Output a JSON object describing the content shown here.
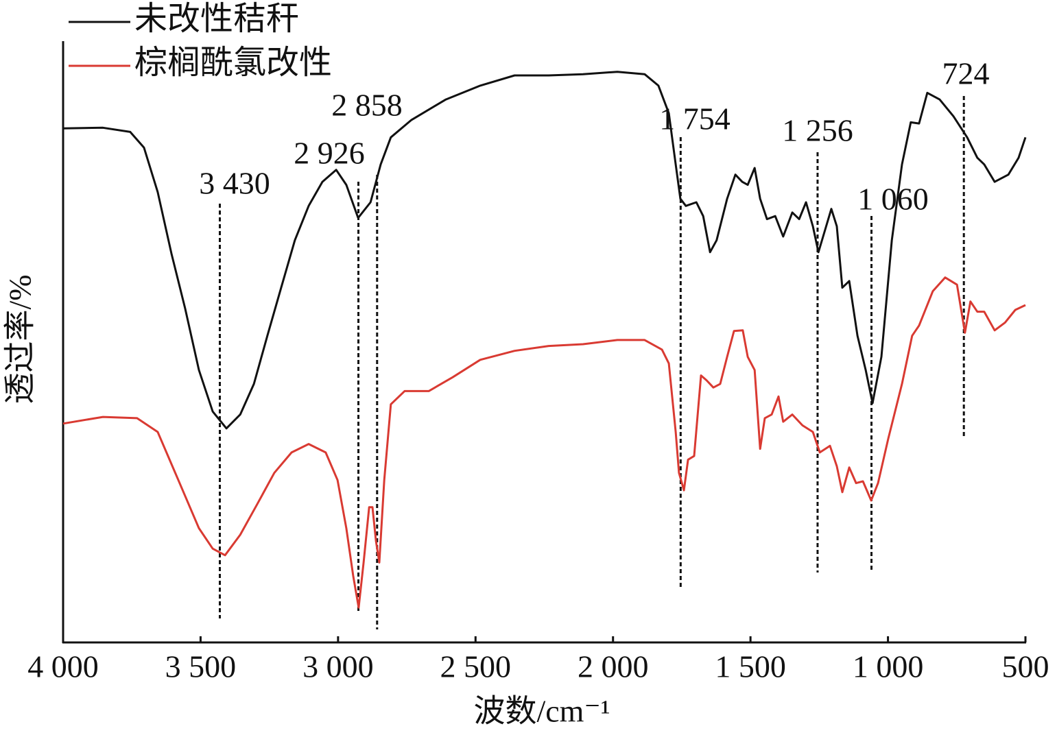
{
  "chart_data": {
    "type": "line",
    "xlabel": "波数/cm⁻¹",
    "ylabel": "透过率/%",
    "xlim": [
      4000,
      500
    ],
    "ylim": [
      0,
      100
    ],
    "xticks": [
      {
        "value": 4000,
        "label": "4 000"
      },
      {
        "value": 3500,
        "label": "3 500"
      },
      {
        "value": 3000,
        "label": "3 000"
      },
      {
        "value": 2500,
        "label": "2 500"
      },
      {
        "value": 2000,
        "label": "2 000"
      },
      {
        "value": 1500,
        "label": "1 500"
      },
      {
        "value": 1000,
        "label": "1 000"
      },
      500
    ],
    "legend": "upper left",
    "series": [
      {
        "name": "未改性秸秆",
        "color": "#111111",
        "x": [
          4000,
          3855,
          3756,
          3706,
          3656,
          3606,
          3556,
          3506,
          3456,
          3406,
          3356,
          3306,
          3257,
          3207,
          3157,
          3107,
          3057,
          3007,
          2970,
          2927,
          2882,
          2845,
          2808,
          2733,
          2608,
          2483,
          2358,
          2234,
          2109,
          1984,
          1885,
          1835,
          1797,
          1772,
          1755,
          1735,
          1697,
          1672,
          1647,
          1623,
          1585,
          1555,
          1530,
          1510,
          1485,
          1465,
          1440,
          1410,
          1381,
          1348,
          1323,
          1298,
          1273,
          1253,
          1236,
          1206,
          1186,
          1166,
          1141,
          1111,
          1081,
          1056,
          1024,
          986,
          949,
          917,
          887,
          857,
          812,
          762,
          712,
          675,
          650,
          612,
          562,
          525,
          500
        ],
        "values": [
          85.5,
          85.6,
          84.9,
          82.3,
          74.9,
          64.7,
          55.5,
          45.3,
          38.4,
          35.6,
          37.9,
          43.0,
          51.0,
          59.0,
          66.9,
          72.6,
          76.6,
          78.6,
          76.1,
          70.6,
          73.2,
          79.5,
          84.0,
          86.9,
          90.3,
          92.6,
          94.3,
          94.3,
          94.5,
          94.9,
          94.5,
          92.6,
          88.0,
          79.5,
          73.8,
          72.6,
          73.2,
          70.9,
          64.9,
          66.9,
          73.8,
          77.8,
          76.6,
          76.1,
          78.9,
          73.8,
          70.4,
          70.9,
          67.5,
          71.5,
          70.4,
          73.2,
          69.2,
          64.9,
          67.5,
          72.1,
          69.2,
          59.0,
          60.1,
          51.0,
          45.3,
          39.8,
          47.5,
          66.9,
          79.5,
          86.5,
          86.3,
          91.4,
          90.3,
          87.5,
          84.0,
          80.6,
          79.5,
          76.6,
          77.8,
          80.6,
          84.0
        ]
      },
      {
        "name": "棕榈酰氯改性",
        "color": "#d93a32",
        "x": [
          4000,
          3855,
          3731,
          3656,
          3581,
          3506,
          3456,
          3411,
          3356,
          3294,
          3232,
          3169,
          3107,
          3045,
          3002,
          2970,
          2945,
          2925,
          2907,
          2887,
          2875,
          2862,
          2850,
          2832,
          2808,
          2758,
          2670,
          2583,
          2483,
          2358,
          2234,
          2109,
          1984,
          1885,
          1822,
          1797,
          1772,
          1760,
          1742,
          1727,
          1705,
          1680,
          1660,
          1635,
          1610,
          1585,
          1560,
          1528,
          1510,
          1485,
          1465,
          1448,
          1423,
          1398,
          1381,
          1348,
          1311,
          1273,
          1248,
          1211,
          1186,
          1166,
          1141,
          1116,
          1091,
          1061,
          1036,
          999,
          949,
          912,
          887,
          837,
          792,
          749,
          720,
          700,
          675,
          650,
          612,
          574,
          537,
          500
        ],
        "values": [
          36.4,
          37.5,
          37.3,
          35.0,
          27.0,
          19.0,
          15.6,
          14.5,
          17.9,
          23.0,
          28.2,
          31.6,
          33.0,
          31.6,
          27.0,
          19.0,
          11.1,
          5.8,
          13.3,
          22.5,
          22.5,
          16.8,
          13.3,
          27.0,
          39.6,
          41.8,
          41.8,
          44.1,
          47.0,
          48.5,
          49.3,
          49.6,
          50.3,
          50.3,
          48.7,
          46.4,
          35.0,
          28.2,
          25.3,
          30.4,
          31.0,
          44.4,
          43.6,
          42.4,
          43.0,
          47.5,
          51.8,
          51.9,
          47.5,
          45.3,
          32.2,
          37.3,
          37.9,
          40.9,
          36.7,
          37.9,
          36.1,
          35.0,
          31.6,
          32.7,
          29.3,
          25.0,
          29.1,
          26.5,
          26.8,
          23.6,
          26.5,
          33.9,
          43.0,
          51.0,
          52.7,
          58.4,
          60.7,
          59.5,
          51.5,
          56.7,
          55.0,
          55.0,
          51.9,
          53.2,
          55.3,
          56.1
        ]
      }
    ],
    "annotations": [
      {
        "x": 3430,
        "label": "3 430"
      },
      {
        "x": 2926,
        "label": "2 926"
      },
      {
        "x": 2858,
        "label": "2 858"
      },
      {
        "x": 1754,
        "label": "1 754"
      },
      {
        "x": 1256,
        "label": "1 256"
      },
      {
        "x": 1060,
        "label": "1 060"
      },
      {
        "x": 724,
        "label": "724"
      }
    ]
  }
}
